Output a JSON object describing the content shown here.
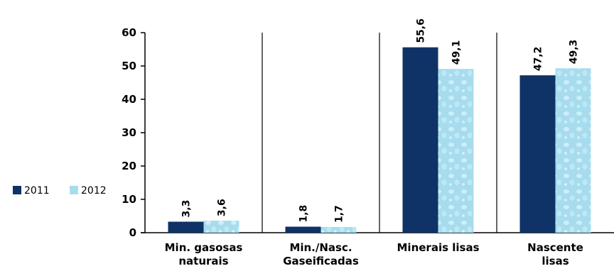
{
  "chart_data": {
    "type": "bar",
    "categories": [
      [
        "Min. gasosas",
        "naturais"
      ],
      [
        "Min./Nasc.",
        "Gaseificadas"
      ],
      [
        "Minerais lisas"
      ],
      [
        "Nascente",
        "lisas"
      ]
    ],
    "series": [
      {
        "name": "2011",
        "values": [
          3.3,
          1.8,
          55.6,
          47.2
        ],
        "labels": [
          "3,3",
          "1,8",
          "55,6",
          "47,2"
        ],
        "color": "#0f3366"
      },
      {
        "name": "2012",
        "values": [
          3.6,
          1.7,
          49.1,
          49.3
        ],
        "labels": [
          "3,6",
          "1,7",
          "49,1",
          "49,3"
        ],
        "color": "#8fd3e8"
      }
    ],
    "y_ticks": [
      "0",
      "10",
      "20",
      "30",
      "40",
      "50",
      "60"
    ],
    "ylim": [
      0,
      60
    ],
    "legend_position": "left",
    "grid": false,
    "title": "",
    "xlabel": "",
    "ylabel": ""
  }
}
